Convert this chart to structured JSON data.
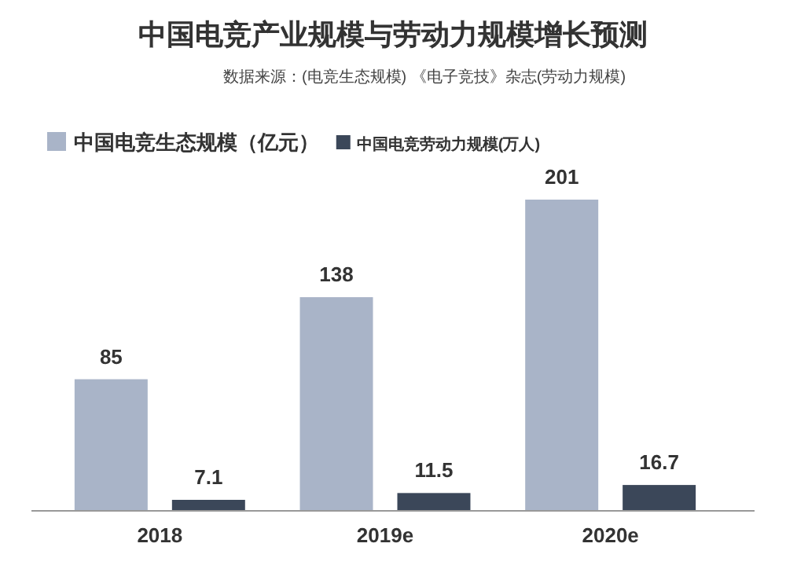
{
  "chart_data": {
    "type": "bar",
    "title": "中国电竞产业规模与劳动力规模增长预测",
    "annotations": [
      "数据来源：(电竞生态规模) 《电子竞技》杂志(劳动力规模)"
    ],
    "categories": [
      "2018",
      "2019e",
      "2020e"
    ],
    "series": [
      {
        "name": "中国电竞生态规模（亿元）",
        "color": "#a9b4c8",
        "values": [
          85,
          138,
          201
        ]
      },
      {
        "name": "中国电竞劳动力规模(万人)",
        "color": "#3b4759",
        "values": [
          7.1,
          11.5,
          16.7
        ]
      }
    ],
    "data_labels": true,
    "legend": "top left",
    "grid": false
  }
}
